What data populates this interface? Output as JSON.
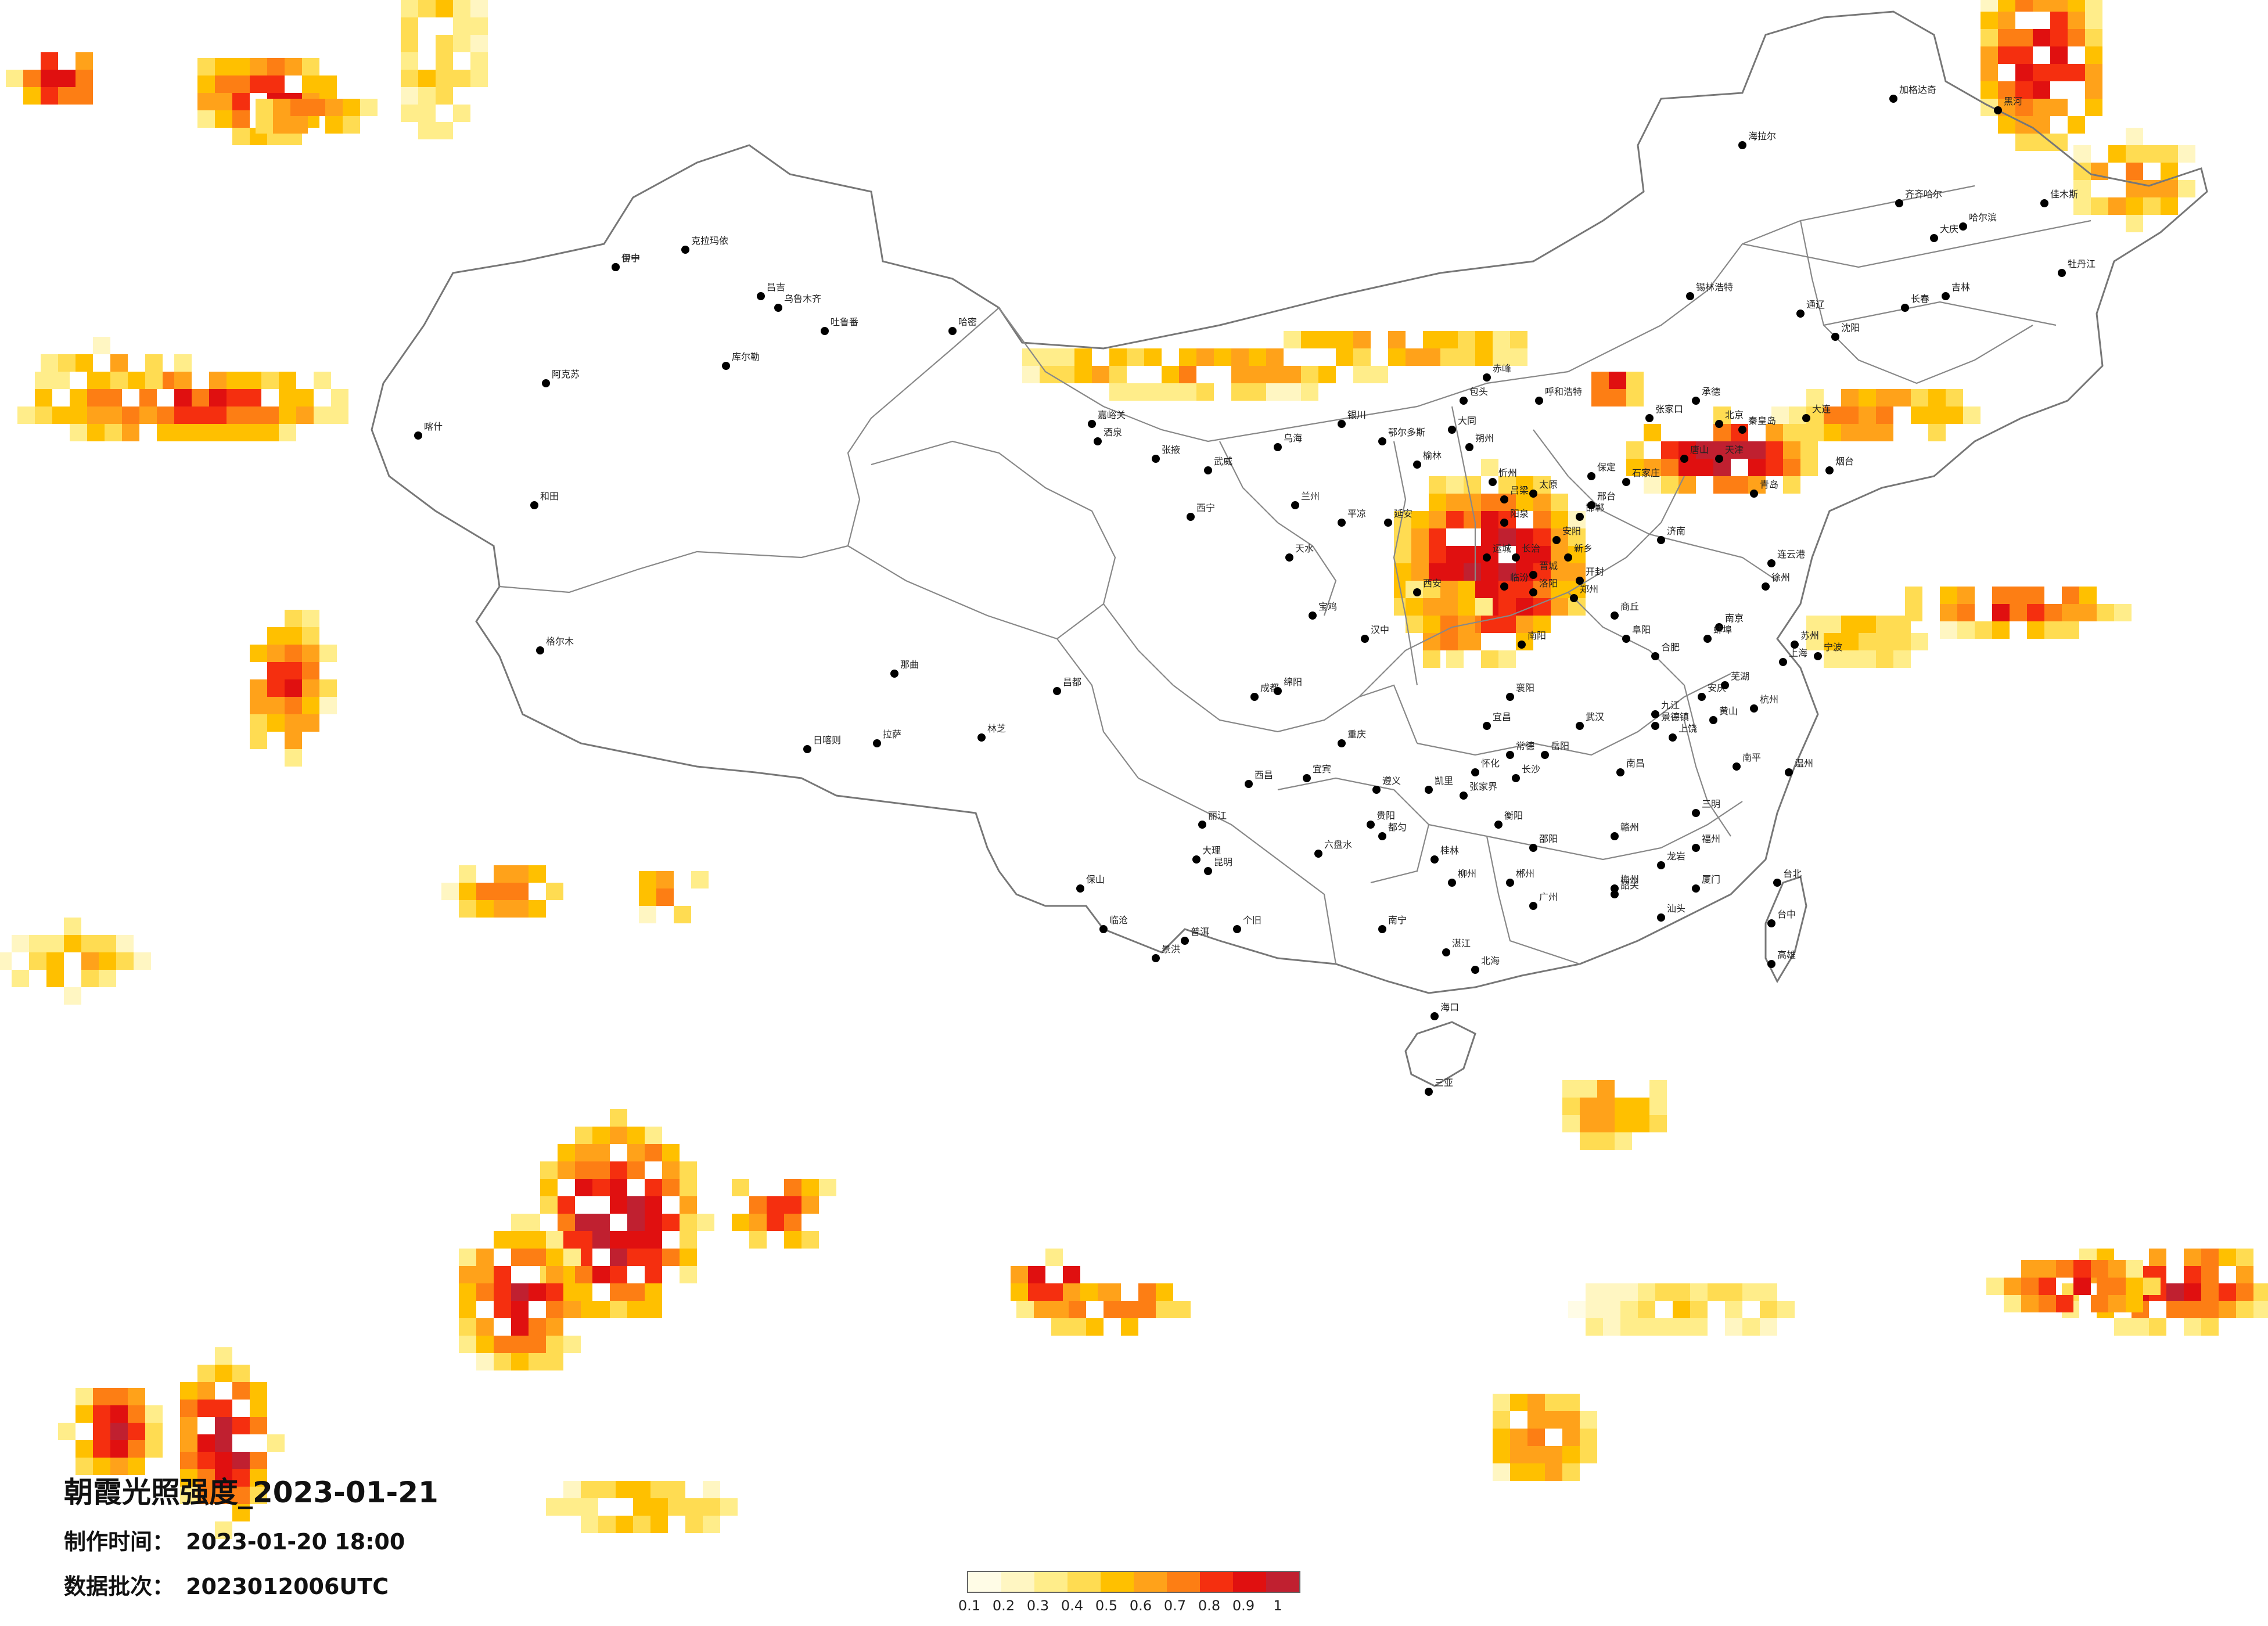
{
  "title": "朝霞光照强度_2023-01-21",
  "meta": {
    "made_label": "制作时间：",
    "made_value": "2023-01-20 18:00",
    "batch_label": "数据批次：",
    "batch_value": "2023012006UTC"
  },
  "legend": {
    "ticks": [
      "0.1",
      "0.2",
      "0.3",
      "0.4",
      "0.5",
      "0.6",
      "0.7",
      "0.8",
      "0.9",
      "1"
    ],
    "colors": [
      "#fffce6",
      "#fff6c2",
      "#ffed8a",
      "#ffdc52",
      "#ffc000",
      "#ffa21a",
      "#fd7e14",
      "#f52f0f",
      "#e01010",
      "#c02030"
    ]
  },
  "cities": [
    {
      "name": "伊宁"
    },
    {
      "name": "克拉玛依"
    },
    {
      "name": "昌吉"
    },
    {
      "name": "乌鲁木齐"
    },
    {
      "name": "吐鲁番"
    },
    {
      "name": "哈密"
    },
    {
      "name": "库尔勒"
    },
    {
      "name": "阿克苏"
    },
    {
      "name": "喀什"
    },
    {
      "name": "和田"
    },
    {
      "name": "格尔木"
    },
    {
      "name": "那曲"
    },
    {
      "name": "拉萨"
    },
    {
      "name": "日喀则"
    },
    {
      "name": "林芝"
    },
    {
      "name": "昌都"
    },
    {
      "name": "西宁"
    },
    {
      "name": "兰州"
    },
    {
      "name": "银川"
    },
    {
      "name": "呼和浩特"
    },
    {
      "name": "包头"
    },
    {
      "name": "北京"
    },
    {
      "name": "天津"
    },
    {
      "name": "石家庄"
    },
    {
      "name": "太原"
    },
    {
      "name": "济南"
    },
    {
      "name": "郑州"
    },
    {
      "name": "西安"
    },
    {
      "name": "武汉"
    },
    {
      "name": "南京"
    },
    {
      "name": "上海"
    },
    {
      "name": "杭州"
    },
    {
      "name": "合肥"
    },
    {
      "name": "南昌"
    },
    {
      "name": "长沙"
    },
    {
      "name": "福州"
    },
    {
      "name": "广州"
    },
    {
      "name": "南宁"
    },
    {
      "name": "海口"
    },
    {
      "name": "贵阳"
    },
    {
      "name": "昆明"
    },
    {
      "name": "成都"
    },
    {
      "name": "重庆"
    },
    {
      "name": "沈阳"
    },
    {
      "name": "大连"
    },
    {
      "name": "长春"
    },
    {
      "name": "吉林"
    },
    {
      "name": "哈尔滨"
    },
    {
      "name": "齐齐哈尔"
    },
    {
      "name": "大庆"
    },
    {
      "name": "海拉尔"
    },
    {
      "name": "加格达奇"
    },
    {
      "name": "黑河"
    },
    {
      "name": "佳木斯"
    },
    {
      "name": "牡丹江"
    },
    {
      "name": "锡林浩特"
    },
    {
      "name": "通辽"
    },
    {
      "name": "青岛"
    },
    {
      "name": "烟台"
    },
    {
      "name": "厦门"
    },
    {
      "name": "台北"
    },
    {
      "name": "台中"
    },
    {
      "name": "高雄"
    },
    {
      "name": "三亚"
    },
    {
      "name": "桂林"
    },
    {
      "name": "柳州"
    },
    {
      "name": "遵义"
    },
    {
      "name": "大理"
    },
    {
      "name": "丽江"
    },
    {
      "name": "西昌"
    },
    {
      "name": "宜宾"
    },
    {
      "name": "绵阳"
    },
    {
      "name": "汉中"
    },
    {
      "name": "宝鸡"
    },
    {
      "name": "延安"
    },
    {
      "name": "榆林"
    },
    {
      "name": "鄂尔多斯"
    },
    {
      "name": "赤峰"
    },
    {
      "name": "乌海"
    },
    {
      "name": "嘉峪关"
    },
    {
      "name": "酒泉"
    },
    {
      "name": "张掖"
    },
    {
      "name": "武威"
    },
    {
      "name": "天水"
    },
    {
      "name": "平凉"
    },
    {
      "name": "洛阳"
    },
    {
      "name": "南阳"
    },
    {
      "name": "襄阳"
    },
    {
      "name": "宜昌"
    },
    {
      "name": "岳阳"
    },
    {
      "name": "衡阳"
    },
    {
      "name": "赣州"
    },
    {
      "name": "九江"
    },
    {
      "name": "安庆"
    },
    {
      "name": "徐州"
    },
    {
      "name": "连云港"
    },
    {
      "name": "苏州"
    },
    {
      "name": "宁波"
    },
    {
      "name": "温州"
    },
    {
      "name": "汕头"
    },
    {
      "name": "湛江"
    },
    {
      "name": "北海"
    },
    {
      "name": "个旧"
    },
    {
      "name": "景洪"
    },
    {
      "name": "普洱"
    },
    {
      "name": "临沧"
    },
    {
      "name": "保山"
    },
    {
      "name": "六盘水"
    },
    {
      "name": "都匀"
    },
    {
      "name": "凯里"
    },
    {
      "name": "怀化"
    },
    {
      "name": "常德"
    },
    {
      "name": "张家界"
    },
    {
      "name": "邵阳"
    },
    {
      "name": "郴州"
    },
    {
      "name": "韶关"
    },
    {
      "name": "梅州"
    },
    {
      "name": "龙岩"
    },
    {
      "name": "三明"
    },
    {
      "name": "南平"
    },
    {
      "name": "上饶"
    },
    {
      "name": "景德镇"
    },
    {
      "name": "黄山"
    },
    {
      "name": "芜湖"
    },
    {
      "name": "蚌埠"
    },
    {
      "name": "阜阳"
    },
    {
      "name": "商丘"
    },
    {
      "name": "开封"
    },
    {
      "name": "新乡"
    },
    {
      "name": "安阳"
    },
    {
      "name": "邯郸"
    },
    {
      "name": "邢台"
    },
    {
      "name": "保定"
    },
    {
      "name": "唐山"
    },
    {
      "name": "秦皇岛"
    },
    {
      "name": "承德"
    },
    {
      "name": "张家口"
    },
    {
      "name": "大同"
    },
    {
      "name": "朔州"
    },
    {
      "name": "忻州"
    },
    {
      "name": "阳泉"
    },
    {
      "name": "长治"
    },
    {
      "name": "晋城"
    },
    {
      "name": "临汾"
    },
    {
      "name": "运城"
    },
    {
      "name": "吕梁"
    },
    {
      "name": "晋中"
    }
  ]
}
